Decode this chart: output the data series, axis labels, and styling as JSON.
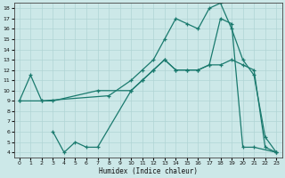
{
  "xlabel": "Humidex (Indice chaleur)",
  "xlim": [
    -0.5,
    23.5
  ],
  "ylim": [
    3.5,
    18.5
  ],
  "xticks": [
    0,
    1,
    2,
    3,
    4,
    5,
    6,
    7,
    8,
    9,
    10,
    11,
    12,
    13,
    14,
    15,
    16,
    17,
    18,
    19,
    20,
    21,
    22,
    23
  ],
  "yticks": [
    4,
    5,
    6,
    7,
    8,
    9,
    10,
    11,
    12,
    13,
    14,
    15,
    16,
    17,
    18
  ],
  "color": "#1a7a6e",
  "bg_color": "#cce8e8",
  "line1_x": [
    0,
    1,
    2,
    8,
    10,
    11,
    12,
    13,
    14,
    15,
    16,
    17,
    18,
    19,
    20,
    21,
    22,
    23
  ],
  "line1_y": [
    9,
    11.5,
    9,
    9.5,
    11,
    12,
    13,
    15,
    17,
    16.5,
    16,
    18,
    18.5,
    16,
    13,
    11.5,
    5.5,
    4
  ],
  "line2_x": [
    0,
    2,
    3,
    7,
    10,
    11,
    12,
    13,
    14,
    15,
    16,
    17,
    18,
    19,
    20,
    21,
    23
  ],
  "line2_y": [
    9,
    9,
    9,
    10,
    10,
    11,
    12,
    13,
    12,
    12,
    12,
    12.5,
    17,
    16.5,
    4.5,
    4.5,
    4
  ],
  "line3_x": [
    3,
    4,
    5,
    6,
    7,
    10,
    11,
    12,
    13,
    14,
    15,
    16,
    17,
    18,
    19,
    20,
    21,
    22,
    23
  ],
  "line3_y": [
    6,
    4,
    5,
    4.5,
    4.5,
    10,
    11,
    12,
    13,
    12,
    12,
    12,
    12.5,
    12.5,
    13,
    12.5,
    12,
    4.5,
    4
  ]
}
